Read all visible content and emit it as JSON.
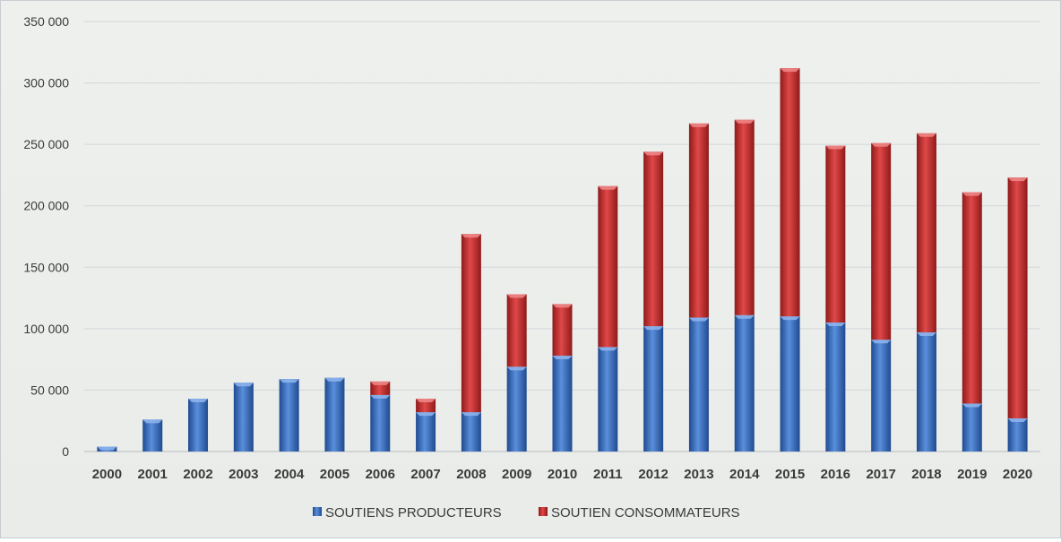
{
  "chart_data": {
    "type": "bar",
    "stacked": true,
    "categories": [
      "2000",
      "2001",
      "2002",
      "2003",
      "2004",
      "2005",
      "2006",
      "2007",
      "2008",
      "2009",
      "2010",
      "2011",
      "2012",
      "2013",
      "2014",
      "2015",
      "2016",
      "2017",
      "2018",
      "2019",
      "2020"
    ],
    "series": [
      {
        "name": "SOUTIENS PRODUCTEURS",
        "color": "#3b6fc4",
        "values": [
          4000,
          26000,
          43000,
          56000,
          59000,
          60000,
          46000,
          32000,
          32000,
          69000,
          78000,
          85000,
          102000,
          109000,
          111000,
          110000,
          105000,
          91000,
          97000,
          39000,
          27000
        ]
      },
      {
        "name": "SOUTIEN CONSOMMATEURS",
        "color": "#c42b2b",
        "values": [
          0,
          0,
          0,
          0,
          0,
          0,
          11000,
          11000,
          145000,
          59000,
          42000,
          131000,
          142000,
          158000,
          159000,
          202000,
          144000,
          160000,
          162000,
          172000,
          196000
        ]
      }
    ],
    "yticks": [
      "0",
      "50 000",
      "100 000",
      "150 000",
      "200 000",
      "250 000",
      "300 000",
      "350 000"
    ],
    "ylim": [
      0,
      350000
    ],
    "grid": true,
    "legend_position": "bottom",
    "title": "",
    "xlabel": "",
    "ylabel": ""
  }
}
